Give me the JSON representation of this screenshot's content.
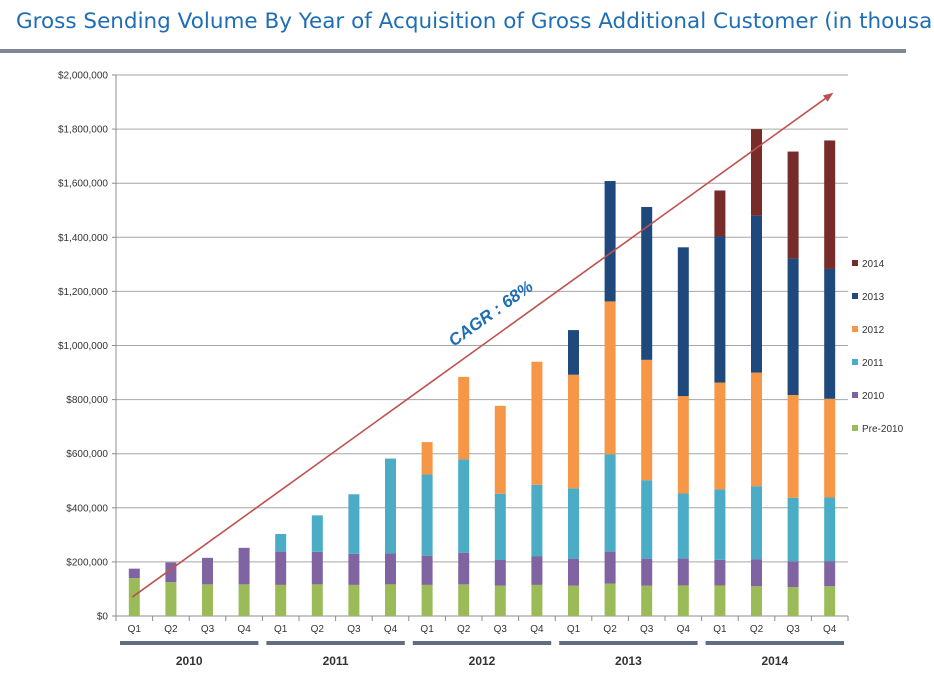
{
  "chart_data": {
    "type": "bar",
    "stacked": true,
    "title": "Gross Sending Volume By Year of Acquisition of Gross Additional Customer (in thousands)",
    "xlabel": "",
    "ylabel": "",
    "ylim": [
      0,
      2000000
    ],
    "yticks": [
      0,
      200000,
      400000,
      600000,
      800000,
      1000000,
      1200000,
      1400000,
      1600000,
      1800000,
      2000000
    ],
    "ytick_labels": [
      "$0",
      "$200,000",
      "$400,000",
      "$600,000",
      "$800,000",
      "$1,000,000",
      "$1,200,000",
      "$1,400,000",
      "$1,600,000",
      "$1,800,000",
      "$2,000,000"
    ],
    "grid": true,
    "legend_position": "right",
    "categories": [
      "Q1",
      "Q2",
      "Q3",
      "Q4",
      "Q1",
      "Q2",
      "Q3",
      "Q4",
      "Q1",
      "Q2",
      "Q3",
      "Q4",
      "Q1",
      "Q2",
      "Q3",
      "Q4",
      "Q1",
      "Q2",
      "Q3",
      "Q4"
    ],
    "year_groups": [
      {
        "label": "2010",
        "start": 0,
        "end": 3
      },
      {
        "label": "2011",
        "start": 4,
        "end": 7
      },
      {
        "label": "2012",
        "start": 8,
        "end": 11
      },
      {
        "label": "2013",
        "start": 12,
        "end": 15
      },
      {
        "label": "2014",
        "start": 16,
        "end": 19
      }
    ],
    "series": [
      {
        "name": "Pre-2010",
        "color": "#9bbb59",
        "values": [
          140000,
          125000,
          117000,
          117000,
          115000,
          117000,
          115000,
          117000,
          115000,
          117000,
          112000,
          115000,
          112000,
          120000,
          112000,
          113000,
          113000,
          110000,
          107000,
          110000
        ]
      },
      {
        "name": "2010",
        "color": "#8064a2",
        "values": [
          35000,
          73000,
          98000,
          135000,
          123000,
          120000,
          115000,
          115000,
          108000,
          117000,
          95000,
          105000,
          100000,
          118000,
          100000,
          100000,
          95000,
          100000,
          95000,
          93000
        ]
      },
      {
        "name": "2011",
        "color": "#4bacc6",
        "values": [
          0,
          0,
          0,
          0,
          65000,
          135000,
          220000,
          350000,
          300000,
          345000,
          245000,
          265000,
          260000,
          360000,
          290000,
          240000,
          260000,
          270000,
          235000,
          235000
        ]
      },
      {
        "name": "2012",
        "color": "#f79646",
        "values": [
          0,
          0,
          0,
          0,
          0,
          0,
          0,
          0,
          120000,
          305000,
          325000,
          455000,
          420000,
          565000,
          445000,
          360000,
          395000,
          420000,
          380000,
          365000
        ]
      },
      {
        "name": "2013",
        "color": "#1f497d",
        "values": [
          0,
          0,
          0,
          0,
          0,
          0,
          0,
          0,
          0,
          0,
          0,
          0,
          165000,
          445000,
          565000,
          550000,
          540000,
          580000,
          505000,
          480000
        ]
      },
      {
        "name": "2014",
        "color": "#772c2a",
        "values": [
          0,
          0,
          0,
          0,
          0,
          0,
          0,
          0,
          0,
          0,
          0,
          0,
          0,
          0,
          0,
          0,
          170000,
          320000,
          395000,
          475000
        ]
      }
    ],
    "annotations": [
      {
        "text": "CAGR : 68%",
        "type": "trend-arrow",
        "from": {
          "category_index": 0,
          "value": 70000
        },
        "to": {
          "category_index": 19,
          "value": 1930000
        }
      }
    ]
  }
}
